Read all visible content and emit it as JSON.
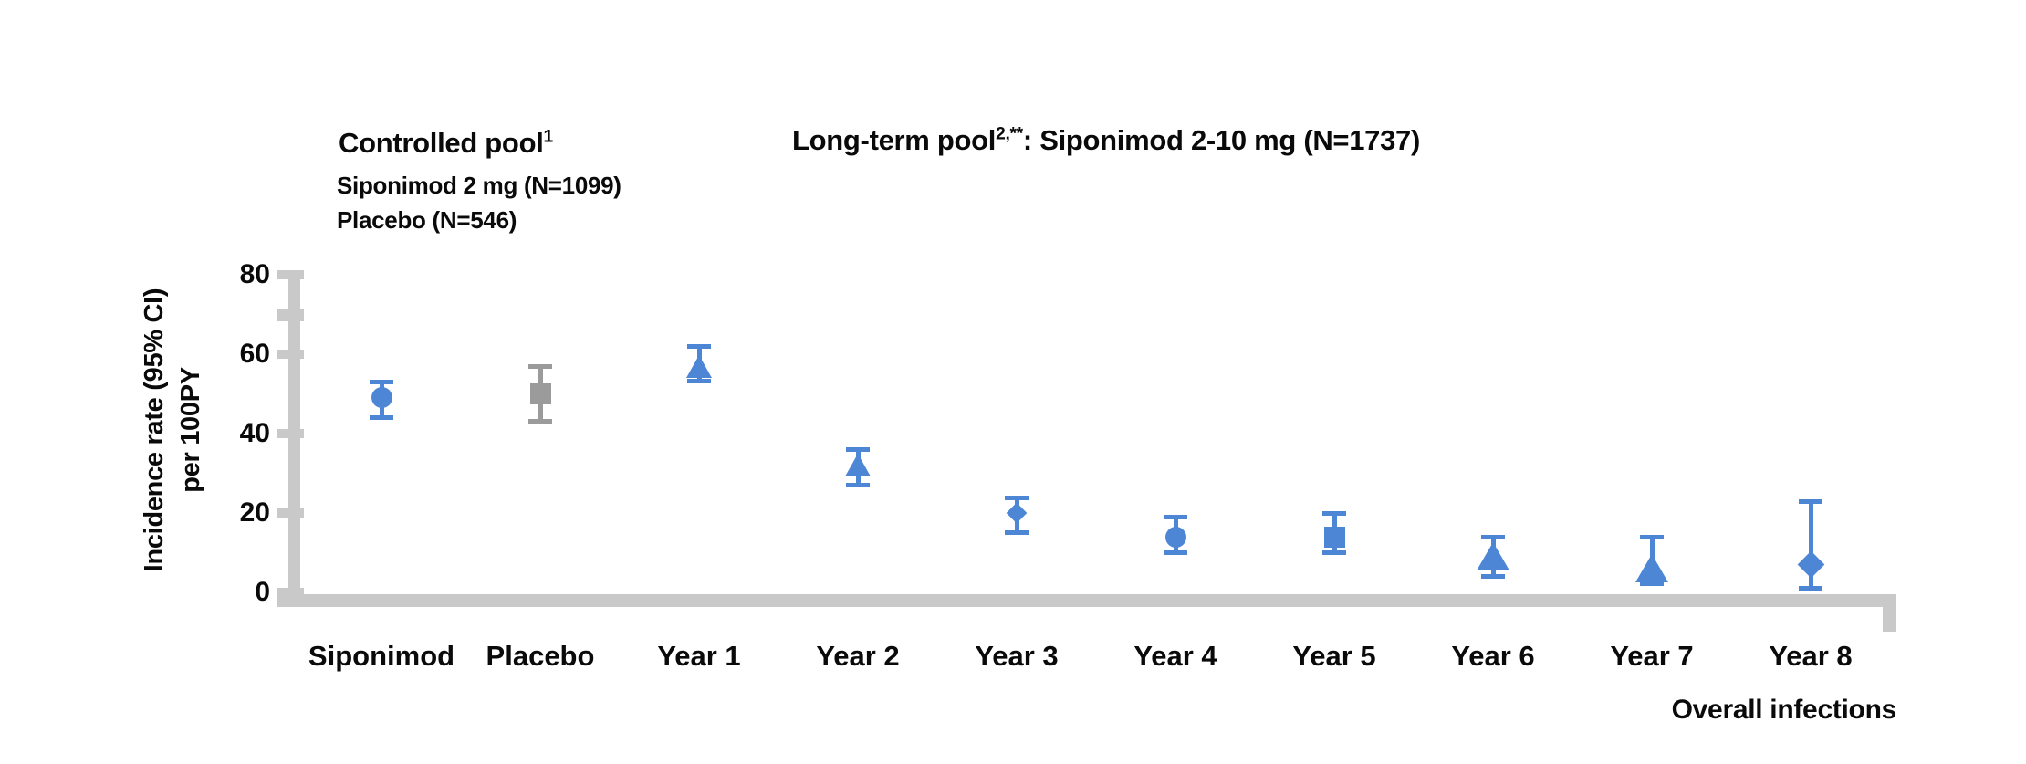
{
  "chart_data": {
    "type": "scatter",
    "description": "Point estimates with 95% CI error bars",
    "annotations": {
      "controlled": {
        "title": "Controlled pool",
        "sup": "1",
        "line1": "Siponimod 2 mg (N=1099)",
        "line2": "Placebo (N=546)"
      },
      "longterm": {
        "title": "Long-term pool",
        "sup": "2,**",
        "rest": ": Siponimod 2-10 mg (N=1737)"
      }
    },
    "ylabel_lines": [
      "Incidence rate (95% CI)",
      "per 100PY"
    ],
    "xlabel_right": "Overall infections",
    "ylim": [
      0,
      80
    ],
    "yticks": [
      80,
      60,
      40,
      20,
      0
    ],
    "minor_ytick": 70,
    "grid": false,
    "legend": "none",
    "categories": [
      "Siponimod",
      "Placebo",
      "Year 1",
      "Year 2",
      "Year 3",
      "Year 4",
      "Year 5",
      "Year 6",
      "Year 7",
      "Year 8"
    ],
    "points": [
      {
        "category": "Siponimod",
        "value": 49,
        "ci_low": 44,
        "ci_high": 53,
        "marker": "circle",
        "size": "small",
        "color": "#4e86d6"
      },
      {
        "category": "Placebo",
        "value": 50,
        "ci_low": 43,
        "ci_high": 57,
        "marker": "square",
        "size": "small",
        "color": "#9b9b9b"
      },
      {
        "category": "Year 1",
        "value": 57,
        "ci_low": 53,
        "ci_high": 62,
        "marker": "triangle",
        "size": "small",
        "color": "#4e86d6"
      },
      {
        "category": "Year 2",
        "value": 32,
        "ci_low": 27,
        "ci_high": 36,
        "marker": "triangle",
        "size": "small",
        "color": "#4e86d6"
      },
      {
        "category": "Year 3",
        "value": 20,
        "ci_low": 15,
        "ci_high": 24,
        "marker": "diamond",
        "size": "small",
        "color": "#4e86d6"
      },
      {
        "category": "Year 4",
        "value": 14,
        "ci_low": 10,
        "ci_high": 19,
        "marker": "circle",
        "size": "small",
        "color": "#4e86d6"
      },
      {
        "category": "Year 5",
        "value": 14,
        "ci_low": 10,
        "ci_high": 20,
        "marker": "square",
        "size": "small",
        "color": "#4e86d6"
      },
      {
        "category": "Year 6",
        "value": 9,
        "ci_low": 4,
        "ci_high": 14,
        "marker": "triangle",
        "size": "large",
        "color": "#4e86d6"
      },
      {
        "category": "Year 7",
        "value": 6,
        "ci_low": 2,
        "ci_high": 14,
        "marker": "triangle",
        "size": "large",
        "color": "#4e86d6"
      },
      {
        "category": "Year 8",
        "value": 7,
        "ci_low": 1,
        "ci_high": 23,
        "marker": "diamond",
        "size": "large",
        "color": "#4e86d6"
      }
    ],
    "palette": {
      "blue": "#4e86d6",
      "gray_marker": "#9b9b9b",
      "axis_gray": "#c9c9c9",
      "text": "#0a0a0a",
      "background": "#ffffff"
    }
  }
}
